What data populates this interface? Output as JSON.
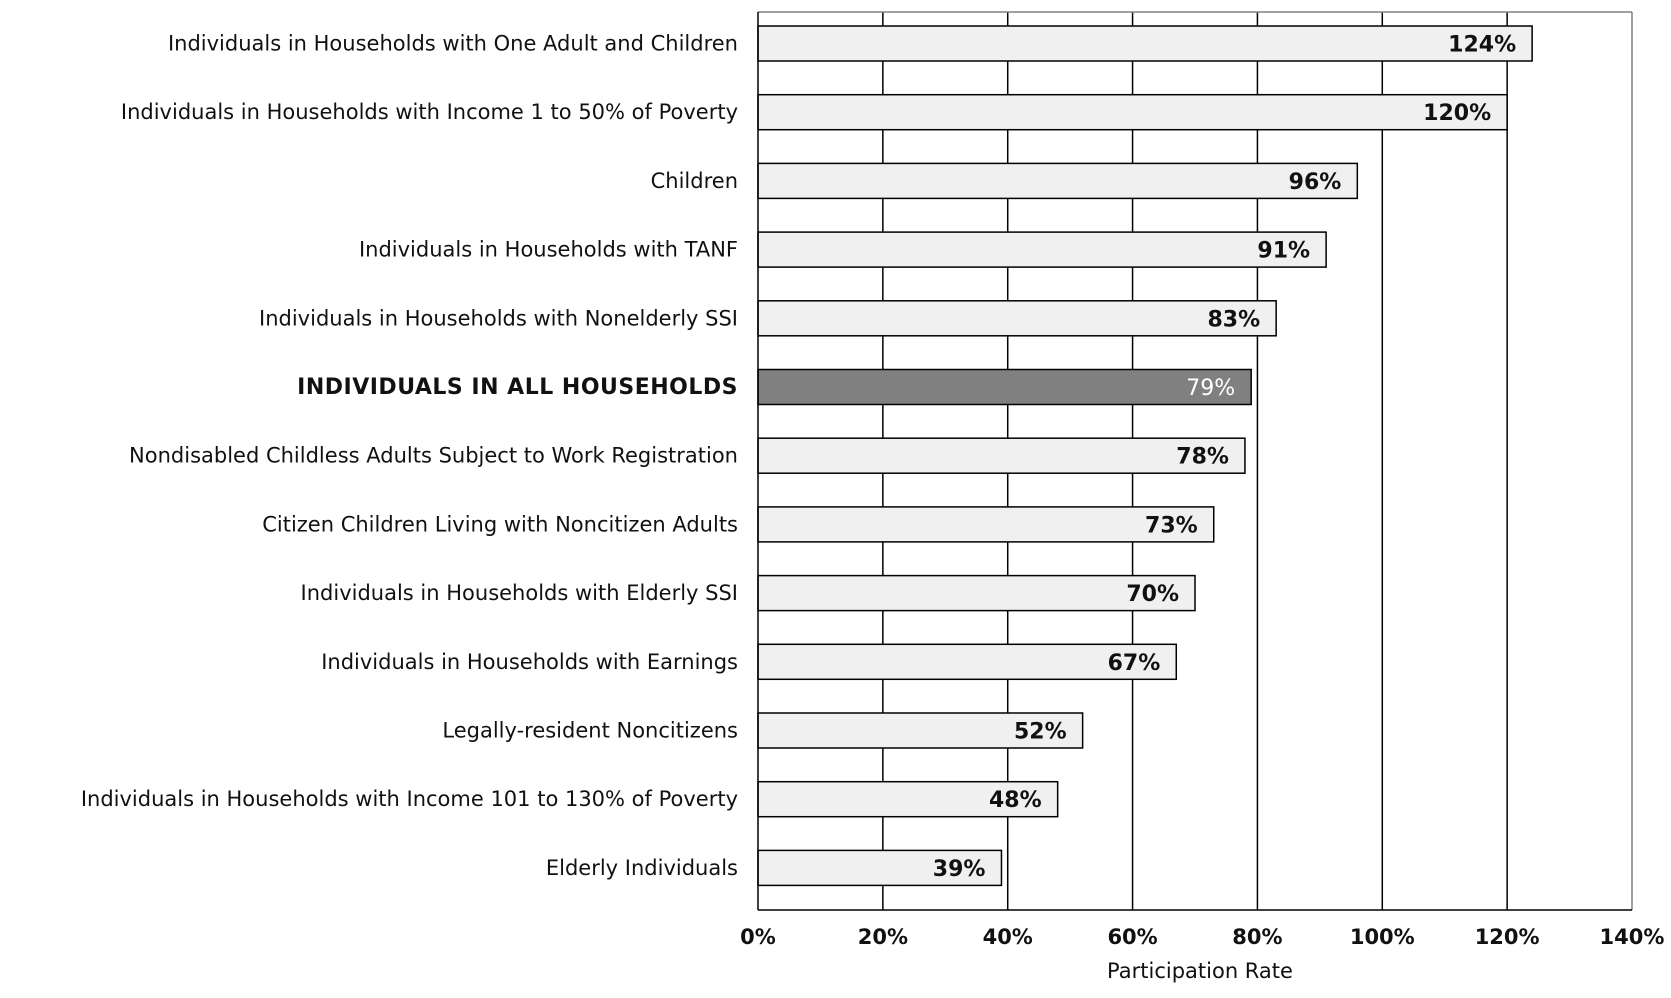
{
  "chart_data": {
    "type": "bar",
    "orientation": "horizontal",
    "categories": [
      "Individuals in Households with One Adult and Children",
      "Individuals in Households with Income 1 to 50% of Poverty",
      "Children",
      "Individuals in Households with TANF",
      "Individuals in Households with Nonelderly SSI",
      "INDIVIDUALS IN ALL HOUSEHOLDS",
      "Nondisabled Childless Adults Subject to Work Registration",
      "Citizen Children Living with Noncitizen Adults",
      "Individuals in Households with Elderly SSI",
      "Individuals in Households with Earnings",
      "Legally-resident Noncitizens",
      "Individuals in Households with Income 101 to 130% of Poverty",
      "Elderly Individuals"
    ],
    "values": [
      124,
      120,
      96,
      91,
      83,
      79,
      78,
      73,
      70,
      67,
      52,
      48,
      39
    ],
    "value_labels": [
      "124%",
      "120%",
      "96%",
      "91%",
      "83%",
      "79%",
      "78%",
      "73%",
      "70%",
      "67%",
      "52%",
      "48%",
      "39%"
    ],
    "highlight_index": 5,
    "xlabel": "Participation Rate",
    "ylabel": "",
    "xlim": [
      0,
      140
    ],
    "x_ticks": [
      0,
      20,
      40,
      60,
      80,
      100,
      120,
      140
    ],
    "x_tick_labels": [
      "0%",
      "20%",
      "40%",
      "60%",
      "80%",
      "100%",
      "120%",
      "140%"
    ],
    "grid": "vertical",
    "legend": "none",
    "colors": {
      "bar_fill": "#f0f0f0",
      "highlight_fill": "#808080",
      "bar_stroke": "#000000",
      "grid": "#000000",
      "frame": "#808080"
    }
  }
}
